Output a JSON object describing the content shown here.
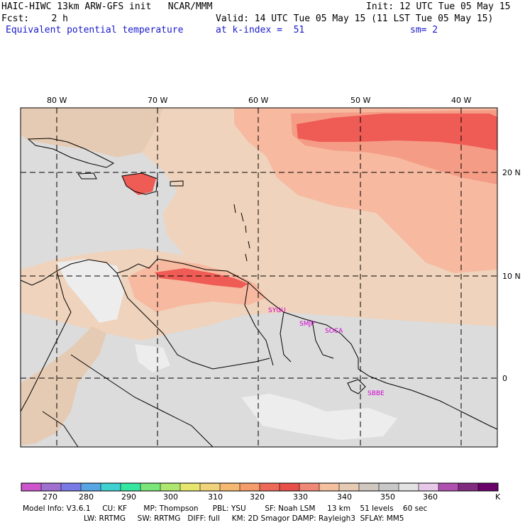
{
  "header": {
    "title": "HAIC-HIWC 13km ARW-GFS init   NCAR/MMM",
    "init": "Init: 12 UTC Tue 05 May 15",
    "fcst": "Fcst:    2 h",
    "valid": "Valid: 14 UTC Tue 05 May 15 (11 LST Tue 05 May 15)",
    "field": "Equivalent potential temperature",
    "level": "at k-index =  51",
    "smooth": "sm= 2"
  },
  "map": {
    "lon_labels": [
      "80 W",
      "70 W",
      "60 W",
      "50 W",
      "40 W"
    ],
    "lat_labels": [
      "20 N",
      "10 N",
      "0"
    ],
    "stations": [
      "SYGU",
      "SMJP",
      "SOCA",
      "SBBE"
    ],
    "colors": {
      "background": "#dcdcdc",
      "light_gray": "#ededed",
      "tan": "#e6cbb4",
      "peach": "#efd3bc",
      "salmon": "#f7b9a0",
      "coral": "#f49c85",
      "red": "#ef5b55",
      "station": "#d000d0"
    }
  },
  "colorbar": {
    "colors": [
      "#cc55cc",
      "#a070d0",
      "#7a7ae6",
      "#56a6e6",
      "#3fd0d0",
      "#35e6a0",
      "#7ae67a",
      "#aee66e",
      "#e6e66e",
      "#f0d27a",
      "#f4b870",
      "#f49c6a",
      "#ee6a58",
      "#e84e4a",
      "#f08878",
      "#f4c0a0",
      "#e6cbb4",
      "#d0c8c0",
      "#c8c8c8",
      "#e2e2e2",
      "#e8c8e8",
      "#b050b0",
      "#802a80",
      "#6a006a"
    ],
    "labels": [
      "270",
      "280",
      "290",
      "300",
      "310",
      "320",
      "330",
      "340",
      "350",
      "360",
      "K"
    ]
  },
  "model_info": {
    "line1": "Model Info: V3.6.1     CU: KF       MP: Thompson      PBL: YSU        SF: Noah LSM     13 km    51 levels    60 sec",
    "line2": "LW: RRTMG     SW: RRTMG   DIFF: full     KM: 2D Smagor DAMP: Rayleigh3  SFLAY: MM5"
  }
}
